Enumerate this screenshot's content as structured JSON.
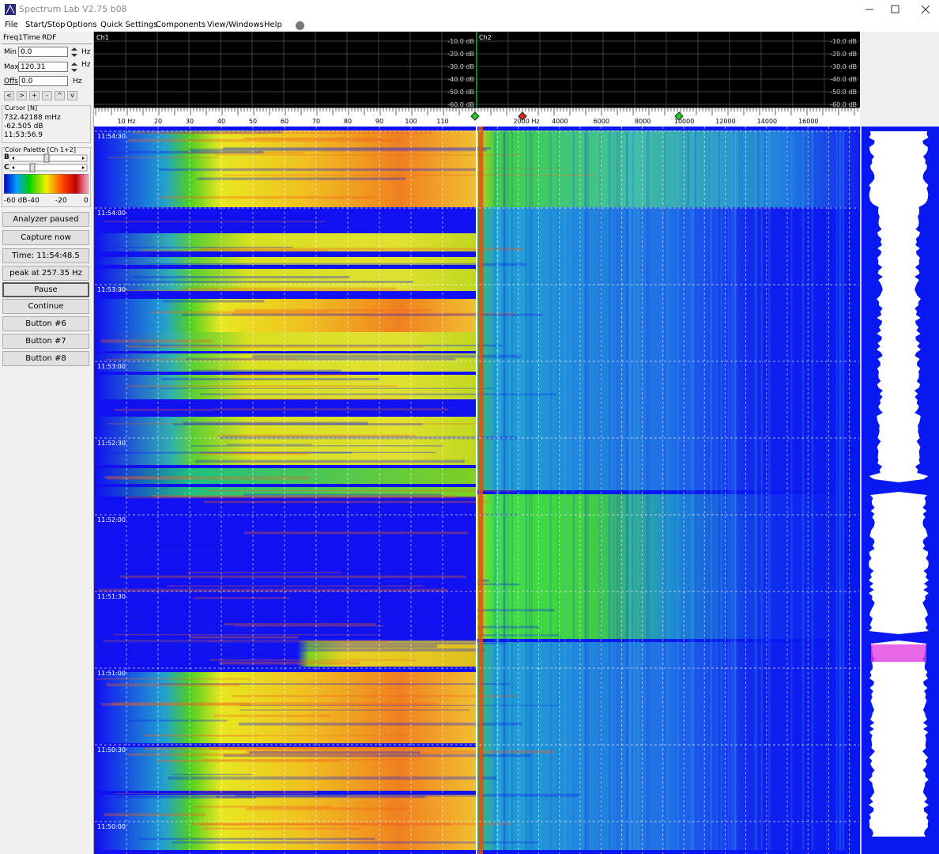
{
  "window": {
    "title": "Spectrum Lab V2.75 b08"
  },
  "menu": [
    "File",
    "Start/Stop",
    "Options",
    "Quick Settings",
    "Components",
    "View/Windows",
    "Help"
  ],
  "left_panel": {
    "tabs": [
      "Freq1",
      "Time",
      "RDF"
    ],
    "min": {
      "label": "Min",
      "value": "0.0",
      "unit": "Hz"
    },
    "max": {
      "label": "Max",
      "value": "120.31",
      "unit": "Hz"
    },
    "offs": {
      "label": "Offs",
      "value": "0.0",
      "unit": "Hz"
    },
    "nav_buttons": [
      "<",
      ">",
      "+",
      "-",
      "^",
      "v"
    ],
    "cursor": {
      "title": "Cursor [N]",
      "lines": [
        "732.42188 mHz",
        "-62.505 dB",
        "11:53:56.9"
      ]
    },
    "palette": {
      "title": "Color Palette [Ch 1+2]",
      "b": "B",
      "c": "C",
      "labels": [
        "-60 dB",
        "-40",
        "-20",
        "0"
      ]
    },
    "buttons": [
      "Analyzer paused",
      "Capture now",
      "Time:  11:54:48.5",
      "peak at 257.35 Hz",
      "Pause",
      "Continue",
      "Button #6",
      "Button #7",
      "Button #8"
    ]
  },
  "spectrum": {
    "channels": [
      {
        "name": "Ch1",
        "db_labels": [
          "-10.0 dB",
          "-20.0 dB",
          "-30.0 dB",
          "-40.0 dB",
          "-50.0 dB",
          "-60.0 dB"
        ],
        "freq_labels": [
          "10 Hz",
          "20",
          "30",
          "40",
          "50",
          "60",
          "70",
          "80",
          "90",
          "100",
          "110"
        ]
      },
      {
        "name": "Ch2",
        "db_labels": [
          "-10.0 dB",
          "-20.0 dB",
          "-30.0 dB",
          "-40.0 dB",
          "-50.0 dB",
          "-60.0 dB"
        ],
        "freq_labels": [
          "2000 Hz",
          "4000",
          "6000",
          "8000",
          "10000",
          "12000",
          "14000",
          "16000"
        ]
      }
    ],
    "time_labels": [
      "11:54:30",
      "11:54:00",
      "11:53:30",
      "11:53:00",
      "11:52:30",
      "11:52:00",
      "11:51:30",
      "11:51:00",
      "11:50:30",
      "11:50:00"
    ]
  }
}
